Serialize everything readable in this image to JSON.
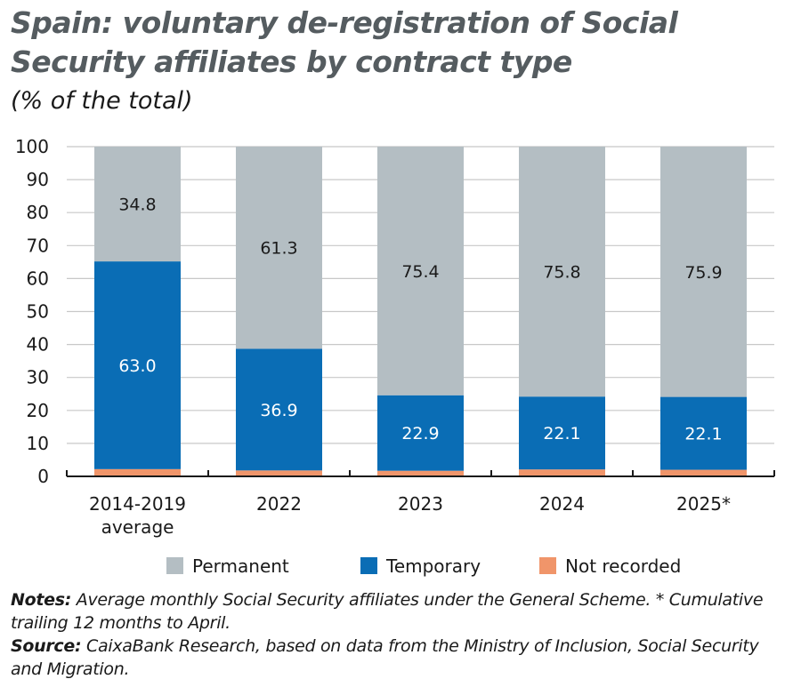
{
  "title": "Spain: voluntary de-registration of Social Security affiliates by contract type",
  "subtitle": "(% of the total)",
  "notes_label": "Notes:",
  "notes_text": "Average monthly Social Security affiliates under the General Scheme. * Cumulative trailing 12 months to April.",
  "source_label": "Source:",
  "source_text": "CaixaBank Research, based on data from the Ministry of Inclusion, Social Security and Migration.",
  "chart_data": {
    "type": "bar",
    "stacked": true,
    "categories": [
      [
        "2014-2019",
        "average"
      ],
      [
        "2022"
      ],
      [
        "2023"
      ],
      [
        "2024"
      ],
      [
        "2025*"
      ]
    ],
    "series": [
      {
        "name": "Not recorded",
        "color": "#f0956a",
        "values": [
          2.2,
          1.8,
          1.7,
          2.1,
          2.0
        ],
        "labels": false
      },
      {
        "name": "Temporary",
        "color": "#0a6db5",
        "values": [
          63.0,
          36.9,
          22.9,
          22.1,
          22.1
        ],
        "labels": true,
        "label_color": "#ffffff"
      },
      {
        "name": "Permanent",
        "color": "#b4bec3",
        "values": [
          34.8,
          61.3,
          75.4,
          75.8,
          75.9
        ],
        "labels": true,
        "label_color": "#1a1a1a"
      }
    ],
    "legend_order": [
      "Permanent",
      "Temporary",
      "Not recorded"
    ],
    "legend_position": "bottom",
    "ylim": [
      0,
      100
    ],
    "yticks": [
      0,
      10,
      20,
      30,
      40,
      50,
      60,
      70,
      80,
      90,
      100
    ],
    "grid": true
  }
}
